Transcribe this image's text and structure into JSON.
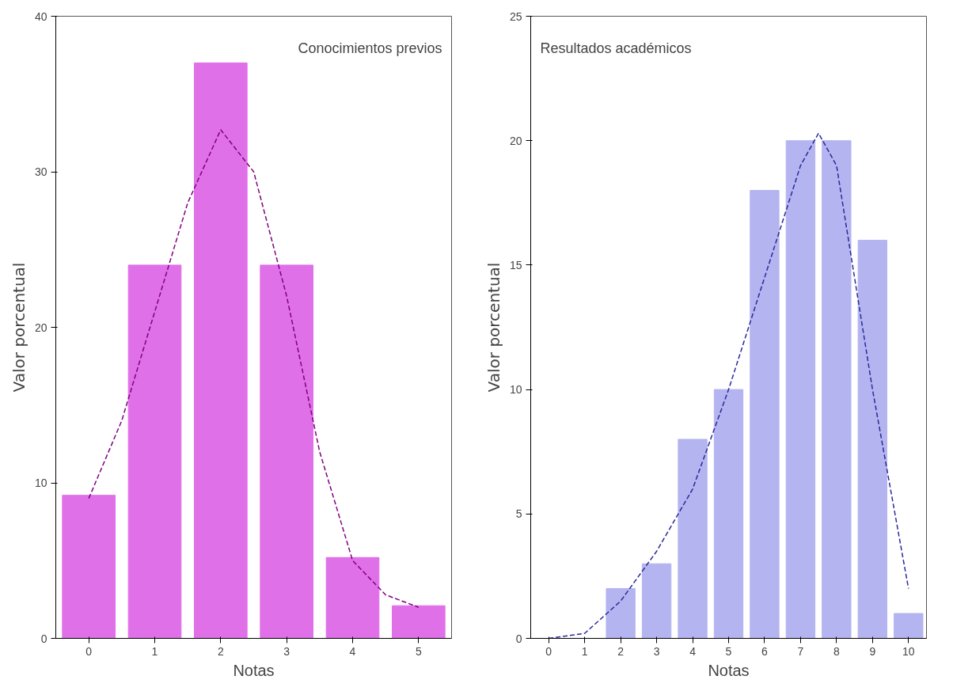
{
  "chart_data": [
    {
      "type": "bar",
      "xlabel": "Notas",
      "ylabel": "Valor porcentual",
      "annotations": [
        "Conocimientos previos"
      ],
      "x": [
        0,
        1,
        2,
        3,
        4,
        5
      ],
      "xlim": [
        -0.5,
        5.5
      ],
      "xticks": [
        0,
        1,
        2,
        3,
        4,
        5
      ],
      "ylim": [
        0,
        40
      ],
      "yticks": [
        0,
        10,
        20,
        30,
        40
      ],
      "grid": false,
      "series": [
        {
          "color": "#e070e8",
          "values": [
            9.2,
            24,
            37,
            24,
            5.2,
            2.1
          ]
        },
        {
          "type": "line",
          "color": "#800080",
          "line_style": "dashed",
          "marker": "none",
          "x": [
            0,
            0.5,
            1,
            1.5,
            2,
            2.5,
            3,
            3.5,
            4,
            4.5,
            5
          ],
          "values": [
            9,
            14,
            21,
            28,
            32.7,
            30,
            22,
            12,
            5,
            2.8,
            2
          ]
        }
      ]
    },
    {
      "type": "bar",
      "xlabel": "Notas",
      "ylabel": "Valor porcentual",
      "annotations": [
        "Resultados académicos"
      ],
      "x": [
        0,
        1,
        2,
        3,
        4,
        5,
        6,
        7,
        8,
        9,
        10
      ],
      "xlim": [
        -0.5,
        10.5
      ],
      "xticks": [
        0,
        1,
        2,
        3,
        4,
        5,
        6,
        7,
        8,
        9,
        10
      ],
      "ylim": [
        0,
        25
      ],
      "yticks": [
        0,
        5,
        10,
        15,
        20,
        25
      ],
      "grid": false,
      "series": [
        {
          "color": "#b4b4f0",
          "values": [
            0,
            0,
            2,
            3,
            8,
            10,
            18,
            20,
            20,
            16,
            1
          ]
        },
        {
          "type": "line",
          "color": "#2a2a9a",
          "line_style": "dashed",
          "marker": "none",
          "x": [
            0,
            1,
            2,
            3,
            4,
            5,
            6,
            7,
            7.5,
            8,
            9,
            10
          ],
          "values": [
            0,
            0.2,
            1.5,
            3.5,
            6,
            10,
            14.5,
            19,
            20.3,
            19,
            10,
            2
          ]
        }
      ]
    }
  ]
}
